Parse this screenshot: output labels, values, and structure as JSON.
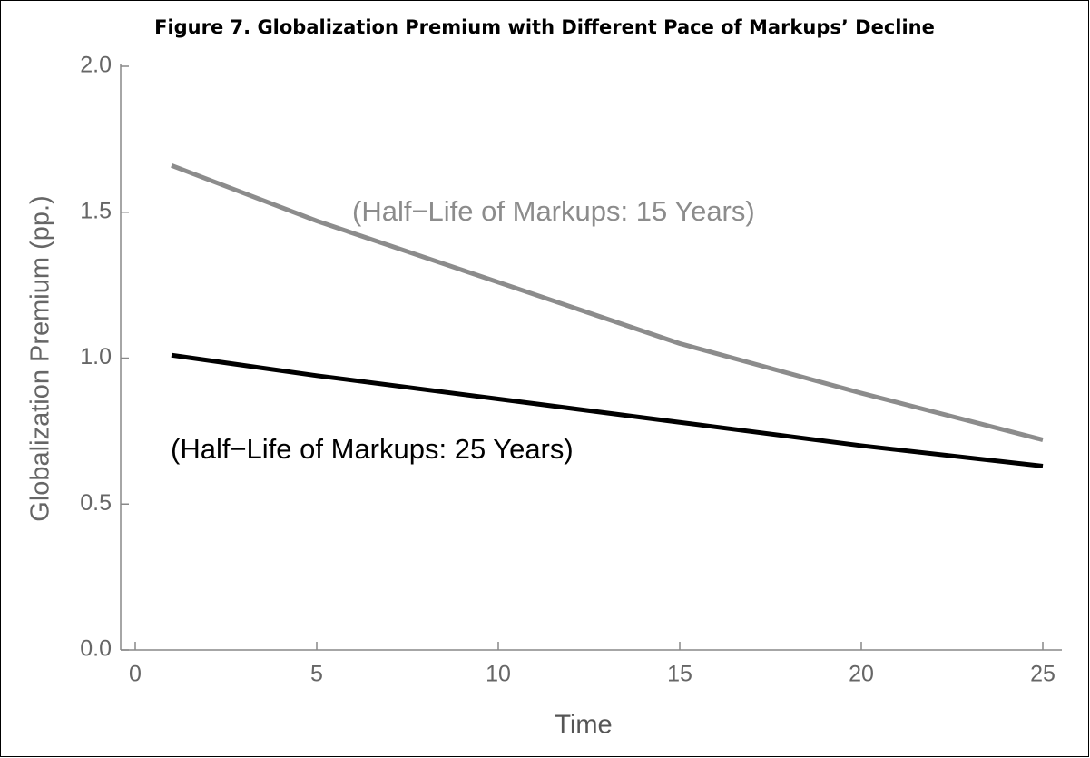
{
  "chart_data": {
    "type": "line",
    "title": "Figure 7. Globalization Premium with Different Pace of Markups’ Decline",
    "x_label": "Time",
    "y_label": "Globalization Premium (pp.)",
    "series": [
      {
        "name": "(Half−Life of Markups: 15 Years)",
        "color": "#8c8c8c",
        "x": [
          1,
          5,
          10,
          15,
          20,
          25
        ],
        "values": [
          1.66,
          1.47,
          1.26,
          1.05,
          0.88,
          0.72
        ]
      },
      {
        "name": "(Half−Life of Markups: 25 Years)",
        "color": "#000000",
        "x": [
          1,
          5,
          10,
          15,
          20,
          25
        ],
        "values": [
          1.01,
          0.94,
          0.86,
          0.78,
          0.7,
          0.63
        ]
      }
    ],
    "xlim": [
      -0.4,
      25.5
    ],
    "xticks": [
      0,
      5,
      10,
      15,
      20,
      25
    ],
    "ylim": [
      0,
      2
    ],
    "yticks": [
      {
        "value": 0,
        "label": "0.0"
      },
      {
        "value": 0.5,
        "label": "0.5"
      },
      {
        "value": 1,
        "label": "1.0"
      },
      {
        "value": 1.5,
        "label": "1.5"
      },
      {
        "value": 2,
        "label": "2.0"
      }
    ]
  }
}
